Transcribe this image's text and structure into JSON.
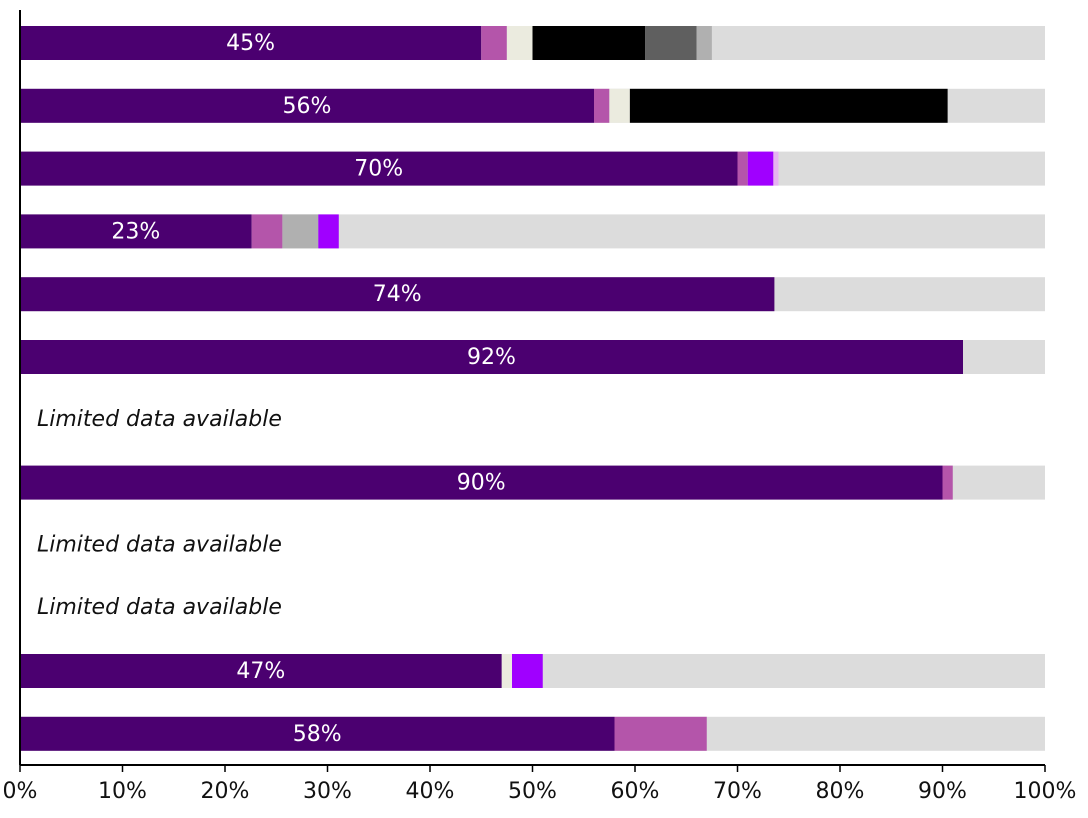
{
  "chart_data": {
    "type": "stacked-bar-horizontal",
    "categories": [
      null,
      null,
      null,
      null,
      null,
      null,
      null,
      null,
      null,
      null,
      null,
      null
    ],
    "series": [
      {
        "color": "#4b0070",
        "values": [
          45,
          56,
          70,
          22.6,
          73.6,
          92,
          null,
          90,
          null,
          null,
          47,
          58
        ],
        "value_labels": [
          "45%",
          "56%",
          "70%",
          "23%",
          "74%",
          "92%",
          null,
          "90%",
          null,
          null,
          "47%",
          "58%"
        ]
      },
      {
        "color": "#b455aa",
        "values": [
          2.5,
          1.5,
          1,
          3,
          null,
          null,
          null,
          1,
          null,
          null,
          null,
          9
        ]
      },
      {
        "color": "#ebebdf",
        "values": [
          2.5,
          2,
          null,
          null,
          null,
          null,
          null,
          null,
          null,
          null,
          1,
          null
        ]
      },
      {
        "color": "#000000",
        "values": [
          11,
          31,
          null,
          null,
          null,
          null,
          null,
          null,
          null,
          null,
          null,
          null
        ]
      },
      {
        "color": "#5f5f5f",
        "values": [
          5,
          null,
          null,
          null,
          null,
          null,
          null,
          null,
          null,
          null,
          null,
          null
        ]
      },
      {
        "color": "#b0b0b0",
        "values": [
          1.5,
          null,
          null,
          3.5,
          null,
          null,
          null,
          null,
          null,
          null,
          null,
          null
        ]
      },
      {
        "color": "#a000ff",
        "values": [
          null,
          null,
          2.5,
          2,
          null,
          null,
          null,
          null,
          null,
          null,
          3,
          null
        ]
      },
      {
        "color": "#e6b3f0",
        "values": [
          null,
          null,
          0.5,
          null,
          null,
          null,
          null,
          null,
          null,
          null,
          null,
          null
        ]
      }
    ],
    "row_notes": [
      null,
      null,
      null,
      null,
      null,
      null,
      "Limited data available",
      null,
      "Limited data available",
      "Limited data available",
      null,
      null
    ],
    "xlim": [
      0,
      100
    ],
    "xticks": [
      {
        "value": 0,
        "label": "0%"
      },
      {
        "value": 10,
        "label": "10%"
      },
      {
        "value": 20,
        "label": "20%"
      },
      {
        "value": 30,
        "label": "30%"
      },
      {
        "value": 40,
        "label": "40%"
      },
      {
        "value": 50,
        "label": "50%"
      },
      {
        "value": 60,
        "label": "60%"
      },
      {
        "value": 70,
        "label": "70%"
      },
      {
        "value": 80,
        "label": "80%"
      },
      {
        "value": 90,
        "label": "90%"
      },
      {
        "value": 100,
        "label": "100%"
      }
    ]
  }
}
